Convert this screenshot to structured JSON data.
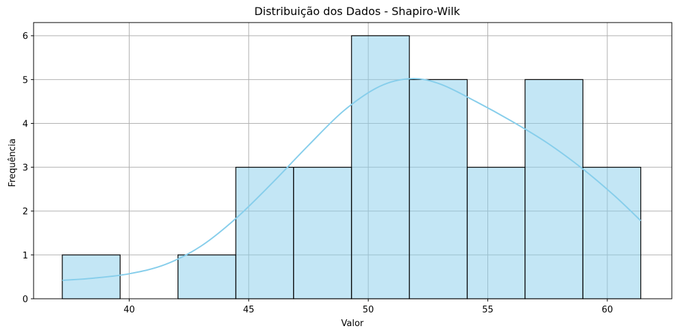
{
  "chart_data": {
    "type": "histogram",
    "title": "Distribuição dos Dados - Shapiro-Wilk",
    "xlabel": "Valor",
    "ylabel": "Frequência",
    "xlim": [
      36.0,
      62.7
    ],
    "ylim": [
      0,
      6.3
    ],
    "xticks": [
      40,
      45,
      50,
      55,
      60
    ],
    "yticks": [
      0,
      1,
      2,
      3,
      4,
      5,
      6
    ],
    "grid": true,
    "bin_edges": [
      37.2,
      39.62,
      42.04,
      44.46,
      46.88,
      49.3,
      51.72,
      54.14,
      56.56,
      58.98,
      61.4
    ],
    "counts": [
      1,
      0,
      1,
      3,
      3,
      6,
      5,
      3,
      5,
      3
    ],
    "bar_color": "#87CEEB",
    "kde": {
      "color": "#87CEEB",
      "x": [
        37.2,
        38.5,
        40.0,
        41.5,
        43.0,
        44.5,
        46.0,
        47.5,
        49.0,
        50.5,
        51.8,
        53.0,
        54.5,
        56.0,
        57.5,
        59.0,
        60.3,
        61.4
      ],
      "y": [
        0.42,
        0.47,
        0.57,
        0.78,
        1.2,
        1.85,
        2.65,
        3.5,
        4.3,
        4.85,
        5.02,
        4.9,
        4.5,
        4.05,
        3.55,
        2.95,
        2.35,
        1.78
      ]
    }
  }
}
